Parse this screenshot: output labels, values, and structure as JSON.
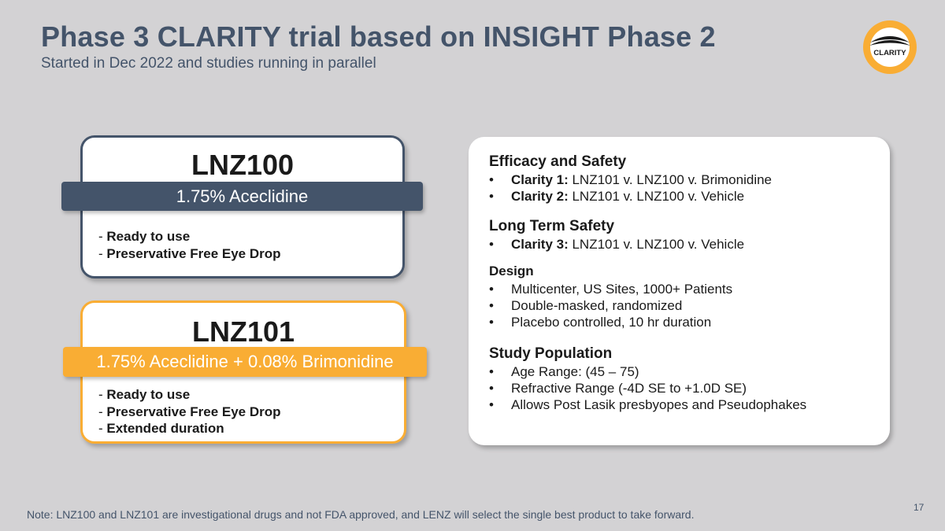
{
  "header": {
    "title": "Phase 3 CLARITY trial based on INSIGHT Phase 2",
    "subtitle": "Started in Dec 2022 and studies running in parallel",
    "logo_text": "CLARITY"
  },
  "products": [
    {
      "name": "LNZ100",
      "formula": "1.75% Aceclidine",
      "features": [
        "Ready to use",
        "Preservative Free Eye Drop"
      ],
      "accent": "#44546a"
    },
    {
      "name": "LNZ101",
      "formula": "1.75% Aceclidine + 0.08% Brimonidine",
      "features": [
        "Ready to use",
        "Preservative Free Eye Drop",
        "Extended duration"
      ],
      "accent": "#f9ad34"
    }
  ],
  "panel": {
    "efficacy": {
      "heading": "Efficacy and Safety",
      "items": [
        {
          "label": "Clarity 1:",
          "text": " LNZ101 v. LNZ100 v. Brimonidine"
        },
        {
          "label": "Clarity 2:",
          "text": " LNZ101 v. LNZ100 v. Vehicle"
        }
      ]
    },
    "long_term": {
      "heading": "Long Term Safety",
      "items": [
        {
          "label": "Clarity 3:",
          "text": " LNZ101 v. LNZ100 v. Vehicle"
        }
      ]
    },
    "design": {
      "heading": "Design",
      "items": [
        "Multicenter, US Sites, 1000+ Patients",
        "Double-masked, randomized",
        "Placebo controlled, 10 hr duration"
      ]
    },
    "population": {
      "heading": "Study Population",
      "items": [
        "Age Range: (45 – 75)",
        "Refractive Range (-4D SE to +1.0D SE)",
        "Allows Post Lasik presbyopes and Pseudophakes"
      ]
    }
  },
  "footer": {
    "page_number": "17",
    "note": "Note: LNZ100 and LNZ101 are investigational drugs and not FDA approved, and LENZ will select the single best product to take forward."
  }
}
